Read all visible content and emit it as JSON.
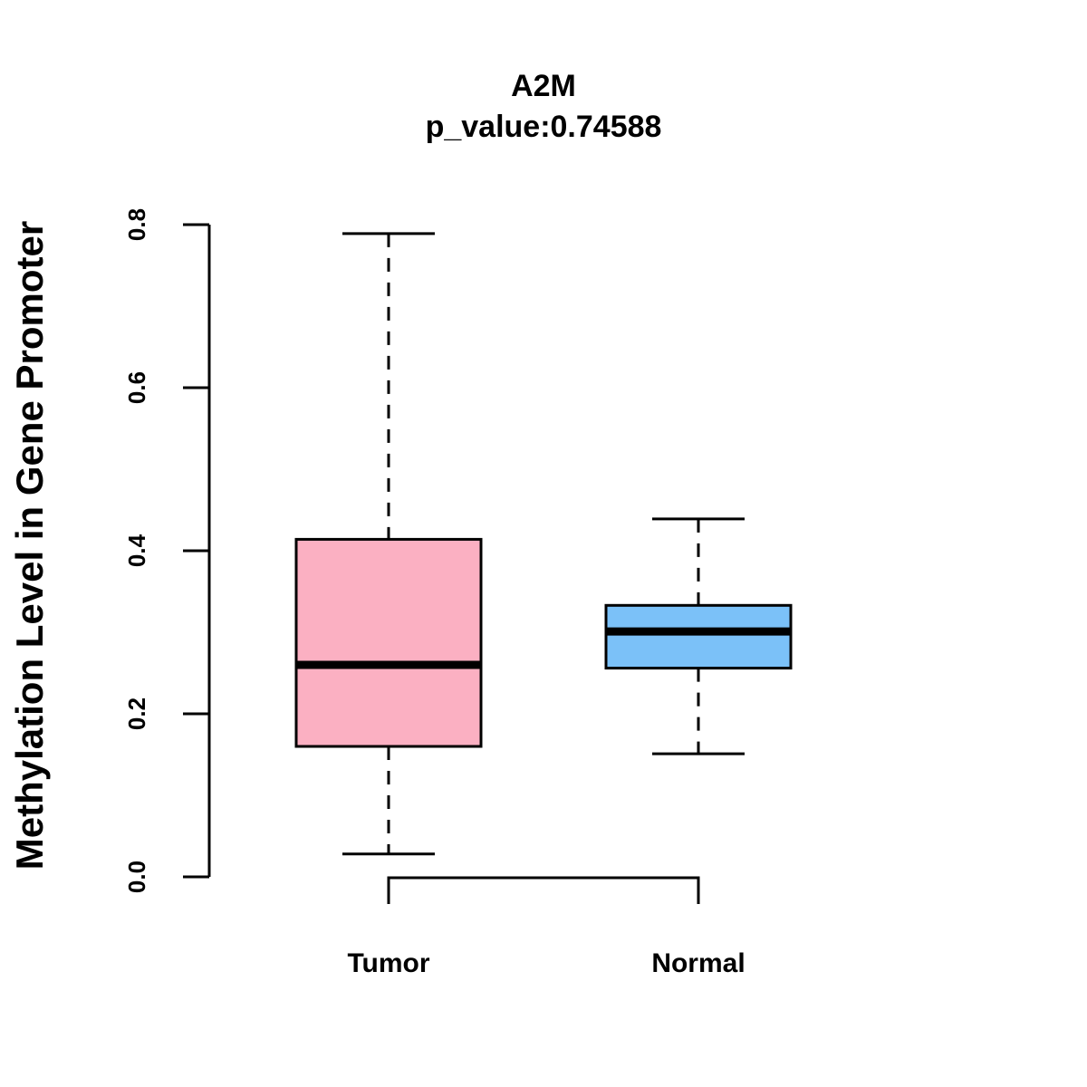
{
  "chart_data": {
    "type": "boxplot",
    "title": "A2M",
    "subtitle": "p_value:0.74588",
    "xlabel": "",
    "ylabel": "Methylation Level in Gene Promoter",
    "ylim": [
      0,
      0.8
    ],
    "yticks": [
      0,
      0.2,
      0.4,
      0.6,
      0.8
    ],
    "ytick_labels": [
      "0.0",
      "0.2",
      "0.4",
      "0.6",
      "0.8"
    ],
    "bracket_annotation": true,
    "categories": [
      "Tumor",
      "Normal"
    ],
    "boxes": [
      {
        "name": "Tumor",
        "min": 0.028,
        "q1": 0.16,
        "median": 0.26,
        "q3": 0.414,
        "max": 0.789,
        "color": "#FBB0C2"
      },
      {
        "name": "Normal",
        "min": 0.151,
        "q1": 0.256,
        "median": 0.301,
        "q3": 0.333,
        "max": 0.439,
        "color": "#7BC1F8"
      }
    ]
  }
}
